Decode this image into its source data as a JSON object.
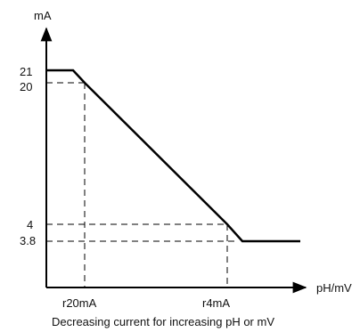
{
  "chart_data": {
    "type": "line",
    "xlabel": "pH/mV",
    "ylabel": "mA",
    "caption": "Decreasing current for increasing pH or mV",
    "x_ticks": [
      "r20mA",
      "r4mA"
    ],
    "y_ticks": [
      "21",
      "20",
      "4",
      "3.8"
    ],
    "series": [
      {
        "points": [
          {
            "x": "",
            "y": 21
          },
          {
            "x": "",
            "y": 21
          },
          {
            "x": "r20mA",
            "y": 20
          },
          {
            "x": "r4mA",
            "y": 4
          },
          {
            "x": "",
            "y": 3.8
          },
          {
            "x": "",
            "y": 3.8
          }
        ]
      }
    ],
    "guides": [
      {
        "label": "20",
        "from_axis": "y",
        "to_x": "r20mA"
      },
      {
        "label": "4",
        "from_axis": "y",
        "to_x": "r4mA"
      },
      {
        "label": "3.8",
        "from_axis": "y"
      }
    ]
  }
}
